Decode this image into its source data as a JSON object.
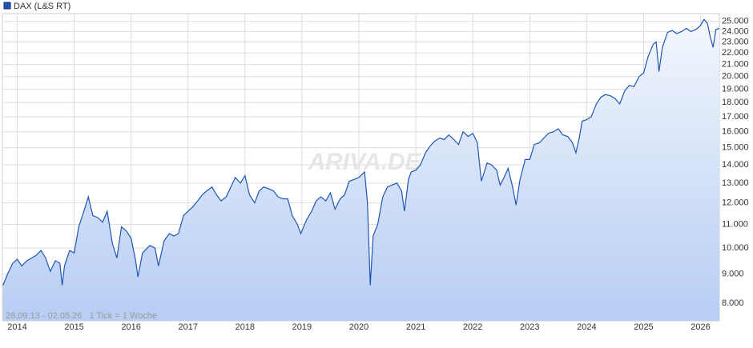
{
  "chart_data": {
    "type": "line",
    "log": true,
    "grid": true,
    "legend_label": "DAX (L&S RT)",
    "watermark": "ARIVA.DE",
    "note": "28.09.13 - 02.05.26   1 Tick = 1 Woche",
    "xlim": [
      2013.74,
      2026.33
    ],
    "xticks": [
      2014,
      2015,
      2016,
      2017,
      2018,
      2019,
      2020,
      2021,
      2022,
      2023,
      2024,
      2025,
      2026
    ],
    "ylim": [
      7450,
      25800
    ],
    "yticks": [
      {
        "value": 8000,
        "label": "8.000"
      },
      {
        "value": 9000,
        "label": "9.000"
      },
      {
        "value": 10000,
        "label": "10.000"
      },
      {
        "value": 11000,
        "label": "11.000"
      },
      {
        "value": 12000,
        "label": "12.000"
      },
      {
        "value": 13000,
        "label": "13.000"
      },
      {
        "value": 14000,
        "label": "14.000"
      },
      {
        "value": 15000,
        "label": "15.000"
      },
      {
        "value": 16000,
        "label": "16.000"
      },
      {
        "value": 17000,
        "label": "17.000"
      },
      {
        "value": 18000,
        "label": "18.000"
      },
      {
        "value": 19000,
        "label": "19.000"
      },
      {
        "value": 20000,
        "label": "20.000"
      },
      {
        "value": 21000,
        "label": "21.000"
      },
      {
        "value": 22000,
        "label": "22.000"
      },
      {
        "value": 23000,
        "label": "23.000"
      },
      {
        "value": 24000,
        "label": "24.000"
      },
      {
        "value": 25000,
        "label": "25.000"
      }
    ],
    "x": [
      2013.75,
      2013.83,
      2013.92,
      2014.0,
      2014.08,
      2014.17,
      2014.25,
      2014.33,
      2014.42,
      2014.5,
      2014.58,
      2014.67,
      2014.75,
      2014.79,
      2014.83,
      2014.92,
      2015.0,
      2015.08,
      2015.17,
      2015.25,
      2015.29,
      2015.33,
      2015.42,
      2015.5,
      2015.58,
      2015.67,
      2015.75,
      2015.83,
      2015.92,
      2016.0,
      2016.08,
      2016.12,
      2016.2,
      2016.33,
      2016.42,
      2016.48,
      2016.58,
      2016.67,
      2016.75,
      2016.83,
      2016.92,
      2017.0,
      2017.08,
      2017.17,
      2017.25,
      2017.33,
      2017.42,
      2017.5,
      2017.58,
      2017.67,
      2017.75,
      2017.83,
      2017.92,
      2018.0,
      2018.08,
      2018.17,
      2018.25,
      2018.33,
      2018.42,
      2018.5,
      2018.58,
      2018.67,
      2018.75,
      2018.83,
      2018.92,
      2018.98,
      2019.08,
      2019.17,
      2019.25,
      2019.33,
      2019.42,
      2019.5,
      2019.58,
      2019.67,
      2019.75,
      2019.83,
      2019.92,
      2020.0,
      2020.1,
      2020.15,
      2020.2,
      2020.25,
      2020.33,
      2020.42,
      2020.5,
      2020.58,
      2020.67,
      2020.75,
      2020.8,
      2020.87,
      2020.92,
      2021.0,
      2021.08,
      2021.17,
      2021.25,
      2021.33,
      2021.42,
      2021.5,
      2021.58,
      2021.67,
      2021.75,
      2021.83,
      2021.92,
      2022.0,
      2022.08,
      2022.15,
      2022.25,
      2022.33,
      2022.42,
      2022.48,
      2022.55,
      2022.62,
      2022.7,
      2022.76,
      2022.83,
      2022.92,
      2023.0,
      2023.08,
      2023.17,
      2023.25,
      2023.33,
      2023.42,
      2023.5,
      2023.58,
      2023.67,
      2023.75,
      2023.81,
      2023.87,
      2023.92,
      2024.0,
      2024.08,
      2024.17,
      2024.25,
      2024.33,
      2024.42,
      2024.5,
      2024.58,
      2024.67,
      2024.75,
      2024.83,
      2024.92,
      2025.0,
      2025.08,
      2025.17,
      2025.22,
      2025.27,
      2025.33,
      2025.42,
      2025.5,
      2025.58,
      2025.67,
      2025.75,
      2025.83,
      2025.92,
      2026.0,
      2026.06,
      2026.12,
      2026.17,
      2026.22,
      2026.27,
      2026.33
    ],
    "series": [
      {
        "name": "DAX (L&S RT)",
        "color": "#1f56b5",
        "values": [
          8600,
          9000,
          9400,
          9550,
          9300,
          9500,
          9600,
          9700,
          9900,
          9600,
          9100,
          9500,
          9400,
          8600,
          9300,
          9900,
          9800,
          10900,
          11600,
          12300,
          11800,
          11400,
          11300,
          11100,
          11600,
          10200,
          9600,
          10900,
          10700,
          10400,
          9500,
          8900,
          9800,
          10100,
          10000,
          9300,
          10300,
          10600,
          10500,
          10600,
          11400,
          11600,
          11800,
          12100,
          12400,
          12600,
          12800,
          12400,
          12100,
          12300,
          12800,
          13300,
          13000,
          13400,
          12400,
          12000,
          12600,
          12800,
          12700,
          12600,
          12300,
          12200,
          12200,
          11400,
          11000,
          10600,
          11200,
          11600,
          12100,
          12300,
          12100,
          12500,
          11700,
          12200,
          12400,
          13100,
          13200,
          13300,
          13600,
          12000,
          8600,
          10500,
          11000,
          12300,
          12800,
          12900,
          13000,
          12600,
          11600,
          13200,
          13600,
          13700,
          14000,
          14700,
          15100,
          15400,
          15600,
          15500,
          15800,
          15500,
          15200,
          16000,
          15700,
          15900,
          15300,
          13100,
          14100,
          14000,
          13700,
          12900,
          13300,
          13800,
          12800,
          11900,
          13200,
          14300,
          14300,
          15200,
          15300,
          15600,
          15900,
          16000,
          16200,
          15800,
          15700,
          15300,
          14700,
          15600,
          16700,
          16800,
          17000,
          17900,
          18400,
          18600,
          18500,
          18300,
          17900,
          18900,
          19300,
          19200,
          20000,
          20300,
          21700,
          22800,
          23000,
          20400,
          22500,
          23900,
          24100,
          23800,
          24000,
          24300,
          24000,
          24200,
          24600,
          25200,
          24800,
          23500,
          22500,
          24200,
          24300
        ]
      }
    ]
  }
}
